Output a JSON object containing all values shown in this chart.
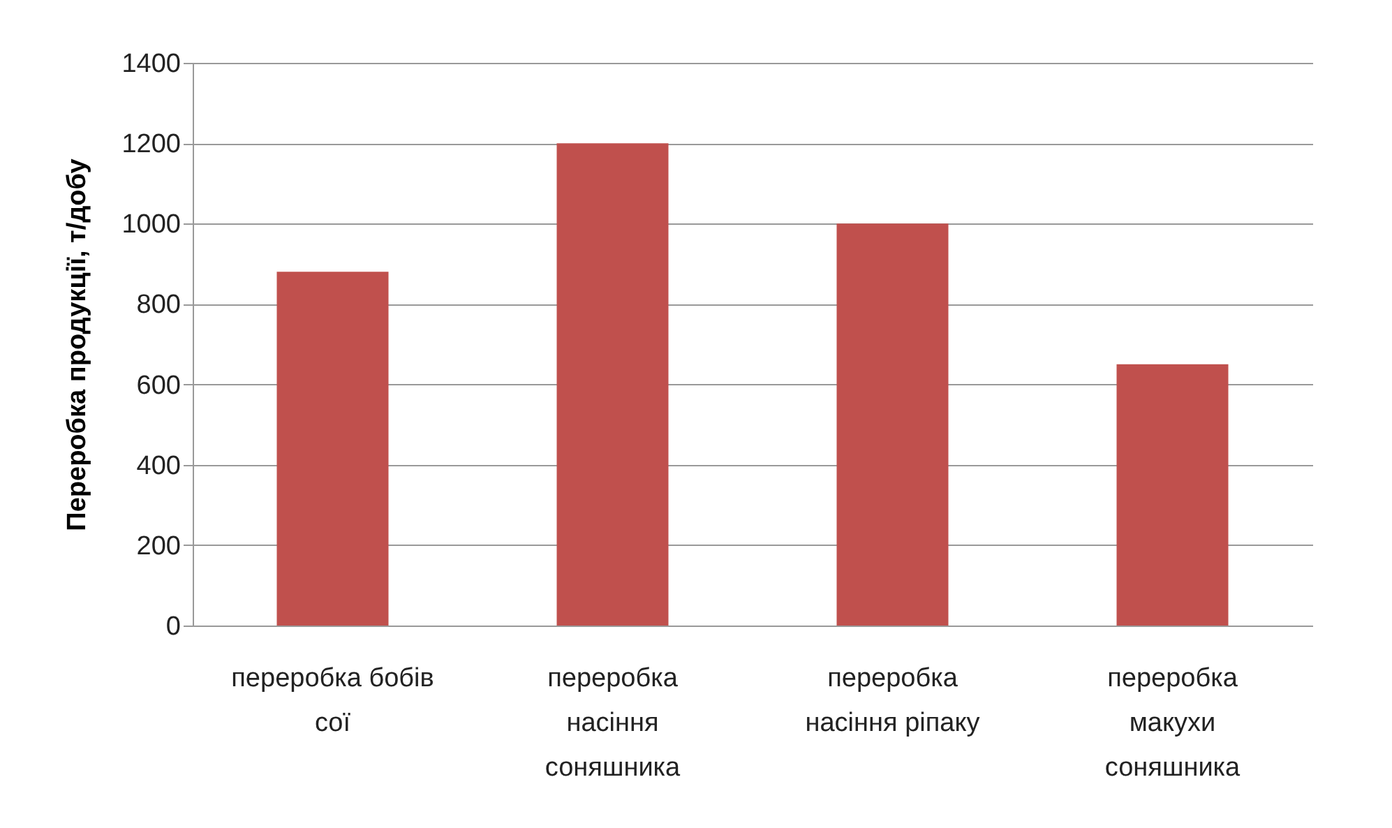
{
  "chart_data": {
    "type": "bar",
    "ylabel": "Переробка продукції, т/добу",
    "categories": [
      "переробка бобів сої",
      "переробка насіння соняшника",
      "переробка насіння ріпаку",
      "переробка макухи соняшника"
    ],
    "values": [
      880,
      1200,
      1000,
      650
    ],
    "color": "#c0504d",
    "ylim": [
      0,
      1400
    ],
    "yticks": [
      0,
      200,
      400,
      600,
      800,
      1000,
      1200,
      1400
    ],
    "grid": "y"
  }
}
